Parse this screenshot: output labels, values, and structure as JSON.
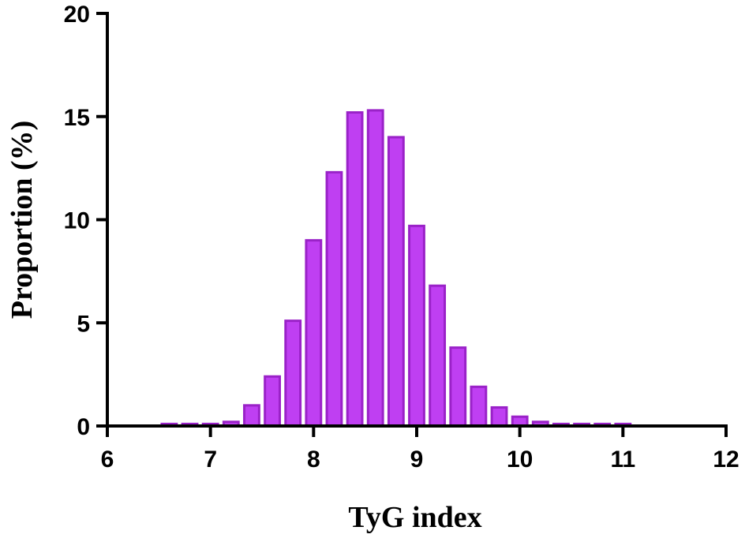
{
  "chart_data": {
    "type": "bar",
    "title": "",
    "xlabel": "TyG index",
    "ylabel": "Proportion (%)",
    "xlim": [
      6,
      12
    ],
    "ylim": [
      0,
      20
    ],
    "xticks": [
      6,
      7,
      8,
      9,
      10,
      11,
      12
    ],
    "yticks": [
      0,
      5,
      10,
      15,
      20
    ],
    "bin_width": 0.2,
    "grid": false,
    "legend": "none",
    "colors": {
      "bar_fill": "#bf3ff2",
      "bar_stroke": "#9a22c8",
      "axis": "#000000"
    },
    "x": [
      6.6,
      6.8,
      7.0,
      7.2,
      7.4,
      7.6,
      7.8,
      8.0,
      8.2,
      8.4,
      8.6,
      8.8,
      9.0,
      9.2,
      9.4,
      9.6,
      9.8,
      10.0,
      10.2,
      10.4,
      10.6,
      10.8,
      11.0
    ],
    "values": [
      0.1,
      0.1,
      0.1,
      0.2,
      1.0,
      2.4,
      5.1,
      9.0,
      12.3,
      15.2,
      15.3,
      14.0,
      9.7,
      6.8,
      3.8,
      1.9,
      0.9,
      0.45,
      0.2,
      0.1,
      0.1,
      0.1,
      0.1
    ]
  }
}
